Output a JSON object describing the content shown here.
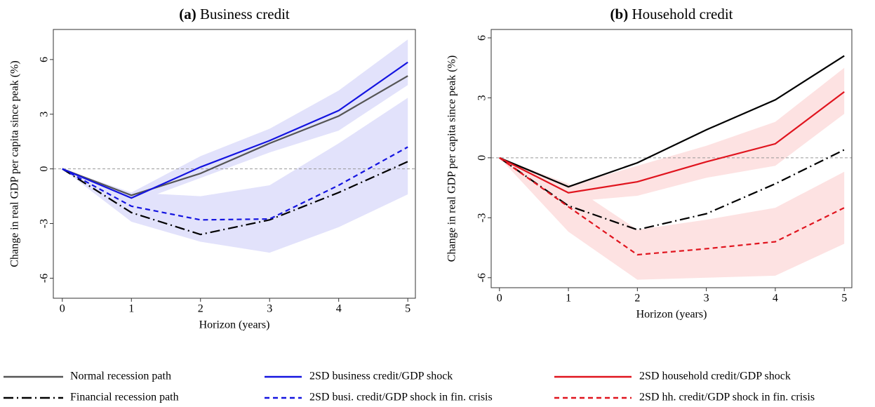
{
  "chart_data": [
    {
      "type": "line",
      "panel": "(a)",
      "title": "Business credit",
      "x_label": "Horizon (years)",
      "y_label": "Change in real GDP per capita since peak (%)",
      "x": [
        0,
        1,
        2,
        3,
        4,
        5
      ],
      "xlim": [
        -0.13,
        5.11
      ],
      "xticks": [
        0,
        1,
        2,
        3,
        4,
        5
      ],
      "ylim": [
        -7.1,
        7.65
      ],
      "yticks": [
        -6,
        -3,
        0,
        3,
        6
      ],
      "reference_line": 0,
      "series": [
        {
          "name": "Normal recession path",
          "color": "#555555",
          "dash": "solid",
          "values": [
            0,
            -1.45,
            -0.25,
            1.4,
            2.9,
            5.1
          ]
        },
        {
          "name": "Financial recession path",
          "color": "#000000",
          "dash": "dashdot",
          "values": [
            0,
            -2.4,
            -3.6,
            -2.8,
            -1.3,
            0.4
          ]
        },
        {
          "name": "2SD business credit/GDP shock",
          "color": "#1414e0",
          "dash": "solid",
          "values": [
            0,
            -1.6,
            0.1,
            1.55,
            3.2,
            5.85
          ],
          "band_color": "#e2e2fb",
          "lower": [
            0,
            -1.9,
            -0.5,
            0.9,
            2.1,
            4.6
          ],
          "upper": [
            0,
            -1.3,
            0.7,
            2.2,
            4.3,
            7.1
          ]
        },
        {
          "name": "2SD busi. credit/GDP shock in fin. crisis",
          "color": "#1414e0",
          "dash": "dash",
          "values": [
            0,
            -2.05,
            -2.8,
            -2.75,
            -0.9,
            1.2
          ],
          "band_color": "#e2e2fb",
          "lower": [
            0,
            -2.9,
            -4.0,
            -4.6,
            -3.2,
            -1.4
          ],
          "upper": [
            0,
            -1.3,
            -1.5,
            -0.9,
            1.4,
            3.9
          ]
        }
      ]
    },
    {
      "type": "line",
      "panel": "(b)",
      "title": "Household credit",
      "x_label": "Horizon (years)",
      "y_label": "Change in real GDP per capita since peak (%)",
      "x": [
        0,
        1,
        2,
        3,
        4,
        5
      ],
      "xlim": [
        -0.12,
        5.11
      ],
      "xticks": [
        0,
        1,
        2,
        3,
        4,
        5
      ],
      "ylim": [
        -6.5,
        6.42
      ],
      "yticks": [
        -6,
        -3,
        0,
        3,
        6
      ],
      "reference_line": 0,
      "series": [
        {
          "color": "#000000",
          "dash": "solid",
          "values": [
            0,
            -1.45,
            -0.25,
            1.4,
            2.9,
            5.1
          ]
        },
        {
          "color": "#000000",
          "dash": "dashdot",
          "values": [
            0,
            -2.4,
            -3.6,
            -2.8,
            -1.3,
            0.4
          ]
        },
        {
          "name": "2SD household credit/GDP shock",
          "color": "#e0141e",
          "dash": "solid",
          "values": [
            0,
            -1.75,
            -1.2,
            -0.2,
            0.7,
            3.3
          ],
          "band_color": "#fde2e2",
          "lower": [
            0,
            -2.2,
            -1.9,
            -1.0,
            -0.4,
            2.2
          ],
          "upper": [
            0,
            -1.4,
            -0.4,
            0.6,
            1.8,
            4.5
          ]
        },
        {
          "name": "2SD hh. credit/GDP shock in fin. crisis",
          "color": "#e0141e",
          "dash": "dash",
          "values": [
            0,
            -2.45,
            -4.85,
            -4.55,
            -4.2,
            -2.5
          ],
          "band_color": "#fde2e2",
          "lower": [
            0,
            -3.7,
            -6.1,
            -6.0,
            -5.9,
            -4.3
          ],
          "upper": [
            0,
            -1.3,
            -3.6,
            -3.1,
            -2.5,
            -0.7
          ]
        }
      ]
    }
  ]
}
